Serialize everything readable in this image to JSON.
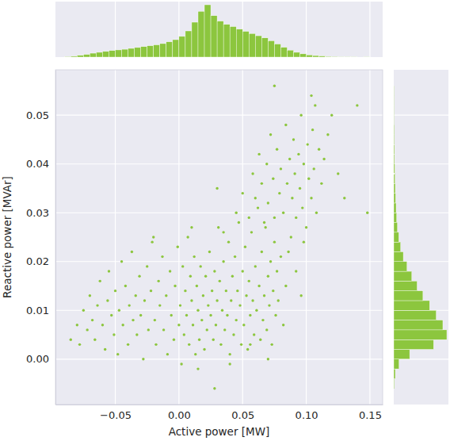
{
  "chart_data": {
    "type": "scatter",
    "x_label": "Active power [MW]",
    "y_label": "Reactive power [MVAr]",
    "color": "#8cc63e",
    "grid": true,
    "xlim": [
      -0.097,
      0.16
    ],
    "ylim": [
      -0.0093,
      0.0593
    ],
    "xticks": [
      {
        "value": -0.05,
        "label": "−0.05"
      },
      {
        "value": 0,
        "label": "0.00"
      },
      0.05,
      {
        "value": 0.1,
        "label": "0.10"
      },
      0.15
    ],
    "yticks": [
      {
        "value": 0,
        "label": "0.00"
      },
      0.01,
      0.02,
      0.03,
      0.04,
      0.05
    ],
    "x": [
      -0.085,
      -0.08,
      -0.078,
      -0.075,
      -0.072,
      -0.07,
      -0.068,
      -0.066,
      -0.064,
      -0.062,
      -0.06,
      -0.058,
      -0.056,
      -0.055,
      -0.053,
      -0.051,
      -0.05,
      -0.048,
      -0.047,
      -0.045,
      -0.044,
      -0.042,
      -0.04,
      -0.039,
      -0.037,
      -0.036,
      -0.034,
      -0.033,
      -0.031,
      -0.03,
      -0.028,
      -0.027,
      -0.025,
      -0.024,
      -0.022,
      -0.021,
      -0.019,
      -0.018,
      -0.016,
      -0.015,
      -0.013,
      -0.012,
      -0.01,
      -0.009,
      -0.007,
      -0.006,
      -0.004,
      -0.003,
      -0.001,
      0.0,
      0.001,
      0.002,
      0.003,
      0.004,
      0.005,
      0.006,
      0.007,
      0.008,
      0.009,
      0.01,
      0.011,
      0.012,
      0.013,
      0.014,
      0.015,
      0.016,
      0.017,
      0.018,
      0.019,
      0.02,
      0.021,
      0.022,
      0.023,
      0.024,
      0.025,
      0.026,
      0.027,
      0.028,
      0.029,
      0.03,
      0.031,
      0.032,
      0.033,
      0.034,
      0.035,
      0.036,
      0.037,
      0.038,
      0.039,
      0.04,
      0.041,
      0.042,
      0.043,
      0.044,
      0.045,
      0.046,
      0.047,
      0.048,
      0.049,
      0.05,
      0.051,
      0.052,
      0.053,
      0.054,
      0.055,
      0.056,
      0.057,
      0.058,
      0.059,
      0.06,
      0.061,
      0.062,
      0.063,
      0.064,
      0.065,
      0.066,
      0.067,
      0.068,
      0.069,
      0.07,
      0.071,
      0.072,
      0.073,
      0.074,
      0.075,
      0.076,
      0.077,
      0.078,
      0.08,
      0.082,
      0.084,
      0.045,
      0.05,
      0.055,
      0.058,
      0.06,
      0.063,
      0.065,
      0.067,
      0.069,
      0.07,
      0.072,
      0.074,
      0.075,
      0.077,
      0.079,
      0.08,
      0.082,
      0.084,
      0.085,
      0.087,
      0.088,
      0.089,
      0.09,
      0.091,
      0.092,
      0.094,
      0.095,
      0.096,
      0.097,
      0.098,
      0.1,
      0.101,
      0.102,
      0.104,
      0.105,
      0.106,
      0.107,
      0.108,
      0.11,
      0.112,
      0.114,
      0.117,
      0.12,
      0.125,
      0.13,
      0.14,
      0.148,
      0.075,
      0.104,
      0.03,
      0.035,
      0.01,
      -0.02,
      0.028,
      0.056,
      0.086,
      0.092,
      0.098,
      0.096,
      0.015,
      0.04,
      0.07
    ],
    "y": [
      0.004,
      0.007,
      0.003,
      0.01,
      0.006,
      0.013,
      0.008,
      0.004,
      0.011,
      0.016,
      0.007,
      0.002,
      0.012,
      0.018,
      0.009,
      0.005,
      0.014,
      0.001,
      0.01,
      0.02,
      0.007,
      0.015,
      0.003,
      0.011,
      0.022,
      0.008,
      0.013,
      0.005,
      0.017,
      0.009,
      0.0,
      0.012,
      0.019,
      0.006,
      0.014,
      0.024,
      0.008,
      0.003,
      0.016,
      0.011,
      0.021,
      0.006,
      0.013,
      0.001,
      0.018,
      0.009,
      0.004,
      0.015,
      0.023,
      0.007,
      0.011,
      -0.001,
      0.019,
      0.005,
      0.014,
      0.009,
      0.025,
      0.003,
      0.017,
      0.012,
      0.007,
      0.021,
      0.001,
      0.015,
      0.01,
      0.004,
      0.019,
      0.008,
      0.013,
      0.002,
      0.017,
      0.006,
      0.011,
      0.022,
      0.009,
      0.014,
      0.004,
      0.018,
      0.007,
      0.012,
      0.027,
      0.016,
      0.003,
      0.01,
      0.02,
      0.006,
      0.014,
      0.009,
      0.024,
      0.001,
      0.012,
      0.017,
      0.005,
      0.021,
      0.008,
      0.014,
      0.028,
      0.011,
      0.003,
      0.018,
      0.007,
      0.023,
      0.013,
      0.002,
      0.016,
      0.009,
      0.026,
      0.012,
      0.005,
      0.019,
      0.01,
      0.031,
      0.015,
      0.004,
      0.022,
      0.008,
      0.013,
      0.027,
      0.006,
      0.017,
      0.011,
      0.02,
      0.003,
      0.014,
      0.024,
      0.009,
      0.018,
      0.012,
      0.021,
      0.007,
      0.015,
      0.03,
      0.034,
      0.029,
      0.038,
      0.033,
      0.042,
      0.036,
      0.028,
      0.04,
      0.032,
      0.046,
      0.037,
      0.029,
      0.043,
      0.034,
      0.039,
      0.03,
      0.048,
      0.036,
      0.041,
      0.025,
      0.033,
      0.045,
      0.038,
      0.029,
      0.042,
      0.035,
      0.05,
      0.031,
      0.04,
      0.027,
      0.044,
      0.037,
      0.033,
      0.047,
      0.039,
      0.052,
      0.03,
      0.043,
      0.036,
      0.041,
      0.046,
      0.05,
      0.038,
      0.033,
      0.052,
      0.03,
      0.056,
      0.054,
      0.035,
      0.026,
      0.027,
      0.025,
      -0.006,
      0.003,
      0.022,
      0.018,
      0.024,
      0.013,
      -0.002,
      -0.001,
      0.0
    ],
    "x_histogram": {
      "bins": [
        -0.09,
        -0.085,
        -0.08,
        -0.075,
        -0.07,
        -0.065,
        -0.06,
        -0.055,
        -0.05,
        -0.045,
        -0.04,
        -0.035,
        -0.03,
        -0.025,
        -0.02,
        -0.015,
        -0.01,
        -0.005,
        0.0,
        0.005,
        0.01,
        0.015,
        0.02,
        0.025,
        0.03,
        0.035,
        0.04,
        0.045,
        0.05,
        0.055,
        0.06,
        0.065,
        0.07,
        0.075,
        0.08,
        0.085,
        0.09,
        0.095,
        0.1,
        0.105,
        0.11,
        0.115,
        0.12,
        0.125,
        0.13,
        0.135,
        0.14,
        0.145,
        0.15
      ],
      "counts": [
        2,
        4,
        8,
        12,
        18,
        22,
        26,
        30,
        33,
        36,
        40,
        44,
        48,
        52,
        56,
        62,
        70,
        80,
        95,
        120,
        160,
        210,
        240,
        190,
        165,
        150,
        140,
        128,
        118,
        108,
        98,
        88,
        75,
        60,
        45,
        32,
        22,
        15,
        10,
        7,
        5,
        3,
        2,
        1,
        1,
        1,
        0,
        1
      ]
    },
    "y_histogram": {
      "bins": [
        -0.006,
        -0.004,
        -0.002,
        0.0,
        0.002,
        0.004,
        0.006,
        0.008,
        0.01,
        0.012,
        0.014,
        0.016,
        0.018,
        0.02,
        0.022,
        0.024,
        0.026,
        0.028,
        0.03,
        0.032,
        0.034,
        0.036,
        0.038,
        0.04,
        0.042,
        0.044,
        0.046,
        0.048,
        0.05,
        0.052,
        0.054,
        0.056
      ],
      "counts": [
        2,
        6,
        20,
        60,
        150,
        200,
        185,
        160,
        135,
        110,
        88,
        68,
        50,
        36,
        26,
        19,
        14,
        11,
        9,
        7,
        6,
        5,
        4,
        3,
        3,
        2,
        2,
        1,
        1,
        1,
        1
      ]
    }
  }
}
